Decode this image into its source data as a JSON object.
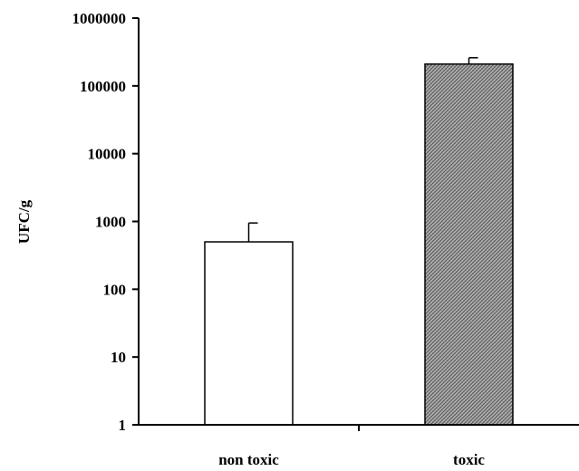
{
  "chart_data": {
    "type": "bar",
    "ylabel": "UFC/g",
    "yscale": "log",
    "ylim": [
      1,
      1000000
    ],
    "yticks": [
      "1",
      "10",
      "100",
      "1000",
      "10000",
      "100000",
      "1000000"
    ],
    "categories": [
      "non toxic",
      "toxic"
    ],
    "values": [
      500,
      210000
    ],
    "error_upper": [
      950,
      260000
    ],
    "colors": [
      "#ffffff",
      "#9a9a9a"
    ],
    "hatch": [
      false,
      true
    ],
    "grid": false
  }
}
